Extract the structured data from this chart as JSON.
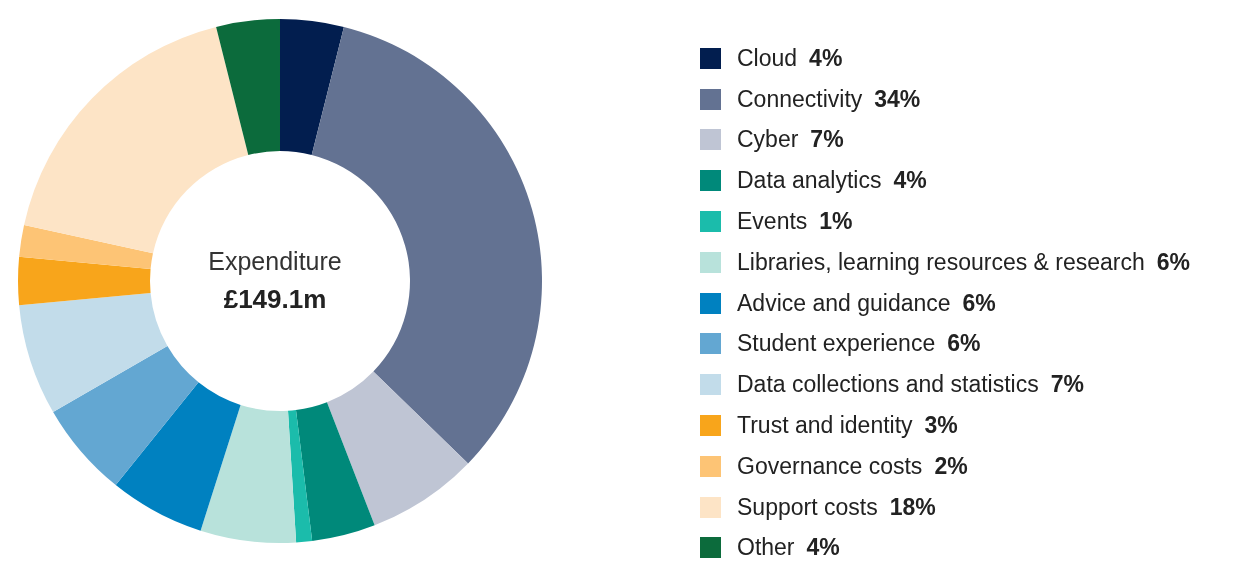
{
  "chart_data": {
    "type": "donut",
    "title": "Expenditure",
    "subtitle": "£149.1m",
    "legend": "right",
    "categories": [
      "Cloud",
      "Connectivity",
      "Cyber",
      "Data analytics",
      "Events",
      "Libraries, learning resources & research",
      "Advice and guidance",
      "Student experience",
      "Data collections and statistics",
      "Trust and identity",
      "Governance costs",
      "Support costs",
      "Other"
    ],
    "values": [
      4,
      34,
      7,
      4,
      1,
      6,
      6,
      6,
      7,
      3,
      2,
      18,
      4
    ],
    "value_labels": [
      "4%",
      "34%",
      "7%",
      "4%",
      "1%",
      "6%",
      "6%",
      "6%",
      "7%",
      "3%",
      "2%",
      "18%",
      "4%"
    ],
    "colors": [
      "#021e4f",
      "#637292",
      "#bfc5d4",
      "#00897a",
      "#1bbcab",
      "#b8e2db",
      "#0081c0",
      "#63a7d2",
      "#c2dcea",
      "#f8a51b",
      "#fdc475",
      "#fde4c6",
      "#0c6b3c"
    ]
  }
}
